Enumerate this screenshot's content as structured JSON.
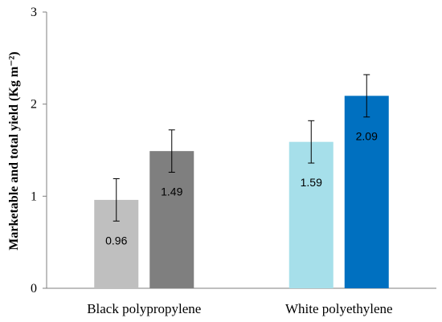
{
  "chart_data": {
    "type": "bar",
    "categories": [
      "Black polypropylene",
      "White polyethylene"
    ],
    "series": [
      {
        "values": [
          0.96,
          1.59
        ],
        "errors": [
          0.23,
          0.23
        ],
        "colors": [
          "#bfbfbf",
          "#a6dfea"
        ]
      },
      {
        "values": [
          1.49,
          2.09
        ],
        "errors": [
          0.23,
          0.23
        ],
        "colors": [
          "#7f7f7f",
          "#0070c0"
        ]
      }
    ],
    "data_labels": [
      [
        "0.96",
        "1.59"
      ],
      [
        "1.49",
        "2.09"
      ]
    ],
    "title": "",
    "xlabel": "",
    "ylabel": "Marketable and total yield (Kg m⁻²)",
    "ylim": [
      0,
      3
    ],
    "yticks": [
      0,
      1,
      2,
      3
    ],
    "grid": false,
    "legend": "none"
  }
}
